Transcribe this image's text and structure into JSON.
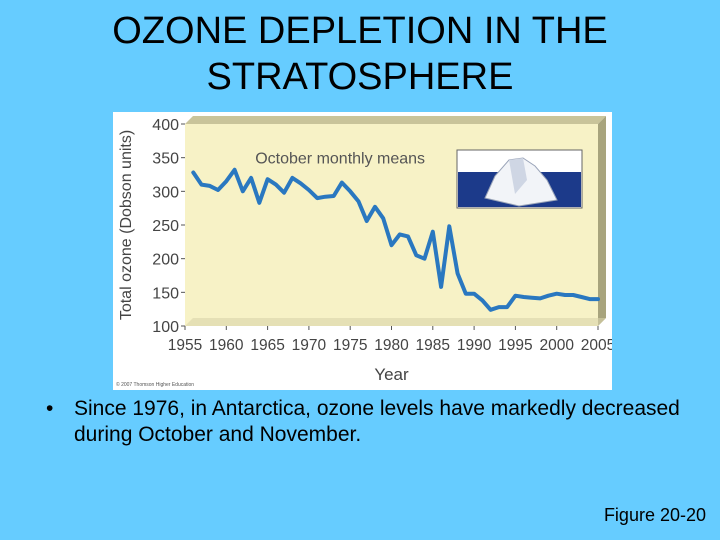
{
  "slide": {
    "title": "OZONE DEPLETION IN THE\nSTRATOSPHERE",
    "bullet_symbol": "•",
    "bullet_text": "Since 1976, in Antarctica, ozone levels have markedly decreased during October and November.",
    "figure_label": "Figure 20-20",
    "copyright": "© 2007 Thomson Higher Education"
  },
  "chart_data": {
    "type": "line",
    "annotation": "October monthly means",
    "xlabel": "Year",
    "ylabel": "Total ozone (Dobson units)",
    "xlim": [
      1955,
      2005
    ],
    "ylim": [
      100,
      400
    ],
    "xticks": [
      1955,
      1960,
      1965,
      1970,
      1975,
      1980,
      1985,
      1990,
      1995,
      2000,
      2005
    ],
    "yticks": [
      100,
      150,
      200,
      250,
      300,
      350,
      400
    ],
    "grid": false,
    "line_color": "#2a78c0",
    "plot_bg": "#f7f2c6",
    "series": [
      {
        "x": [
          1956,
          1957,
          1958,
          1959,
          1960,
          1961,
          1962,
          1963,
          1964,
          1965,
          1966,
          1967,
          1968,
          1969,
          1970,
          1971,
          1972,
          1973,
          1974,
          1975,
          1976,
          1977,
          1978,
          1979,
          1980,
          1981,
          1982,
          1983,
          1984,
          1985,
          1986,
          1987,
          1988,
          1989,
          1990,
          1991,
          1992,
          1993,
          1994,
          1995,
          1996,
          1997,
          1998,
          1999,
          2000,
          2001,
          2002,
          2003,
          2004,
          2005
        ],
        "y": [
          328,
          310,
          308,
          302,
          315,
          332,
          300,
          320,
          283,
          318,
          310,
          298,
          320,
          312,
          302,
          290,
          292,
          293,
          313,
          300,
          285,
          256,
          277,
          260,
          220,
          236,
          233,
          205,
          200,
          240,
          158,
          248,
          178,
          148,
          148,
          138,
          124,
          128,
          128,
          145,
          143,
          142,
          141,
          145,
          148,
          146,
          146,
          143,
          140,
          140
        ]
      }
    ]
  }
}
